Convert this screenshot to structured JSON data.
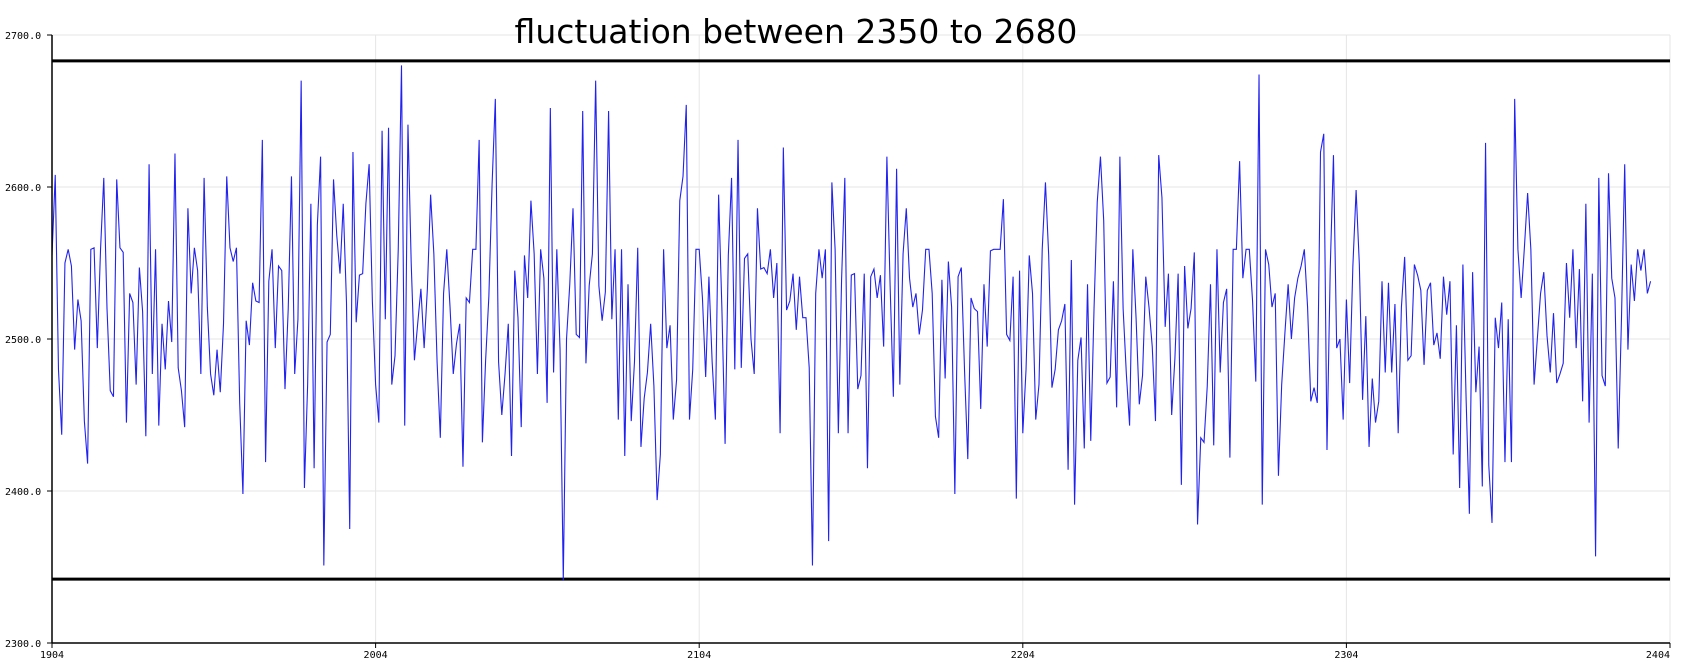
{
  "chart_data": {
    "type": "line",
    "title": "fluctuation between 2350 to 2680",
    "xlabel": "",
    "ylabel": "",
    "xlim": [
      1904,
      2404
    ],
    "ylim": [
      2300,
      2700
    ],
    "x_ticks": [
      1904,
      2004,
      2104,
      2204,
      2304,
      2404
    ],
    "y_ticks": [
      "2300.0",
      "2400.0",
      "2500.0",
      "2600.0",
      "2700.0"
    ],
    "grid": true,
    "legend": "none",
    "line_color": "#2222ee",
    "reference_lines": [
      {
        "y": 2683,
        "color": "#000000"
      },
      {
        "y": 2342,
        "color": "#000000"
      }
    ],
    "series": [
      {
        "x_start": 1904,
        "x_step": 1,
        "values": [
          2555,
          2608,
          2480,
          2437,
          2550,
          2559,
          2548,
          2493,
          2526,
          2512,
          2446,
          2418,
          2559,
          2560,
          2494,
          2559,
          2606,
          2520,
          2466,
          2462,
          2605,
          2560,
          2557,
          2445,
          2530,
          2524,
          2470,
          2547,
          2518,
          2436,
          2615,
          2477,
          2559,
          2443,
          2510,
          2480,
          2525,
          2498,
          2622,
          2481,
          2466,
          2442,
          2586,
          2530,
          2560,
          2545,
          2477,
          2606,
          2521,
          2477,
          2463,
          2493,
          2465,
          2510,
          2607,
          2560,
          2551,
          2560,
          2458,
          2398,
          2512,
          2496,
          2537,
          2525,
          2524,
          2631,
          2419,
          2538,
          2559,
          2494,
          2548,
          2545,
          2467,
          2520,
          2607,
          2477,
          2513,
          2670,
          2402,
          2470,
          2589,
          2415,
          2575,
          2620,
          2351,
          2498,
          2503,
          2605,
          2568,
          2543,
          2589,
          2524,
          2375,
          2623,
          2511,
          2542,
          2543,
          2589,
          2615,
          2525,
          2470,
          2445,
          2637,
          2513,
          2639,
          2470,
          2489,
          2559,
          2680,
          2443,
          2641,
          2550,
          2486,
          2510,
          2533,
          2494,
          2533,
          2595,
          2556,
          2485,
          2435,
          2530,
          2559,
          2521,
          2477,
          2497,
          2510,
          2416,
          2527,
          2524,
          2559,
          2559,
          2631,
          2432,
          2486,
          2528,
          2602,
          2658,
          2485,
          2450,
          2477,
          2510,
          2423,
          2545,
          2514,
          2442,
          2555,
          2527,
          2591,
          2556,
          2477,
          2559,
          2540,
          2458,
          2652,
          2478,
          2559,
          2493,
          2341,
          2500,
          2536,
          2586,
          2503,
          2501,
          2650,
          2484,
          2535,
          2556,
          2670,
          2535,
          2512,
          2531,
          2650,
          2513,
          2559,
          2447,
          2559,
          2423,
          2536,
          2446,
          2485,
          2560,
          2429,
          2461,
          2478,
          2510,
          2469,
          2394,
          2424,
          2559,
          2494,
          2509,
          2447,
          2473,
          2591,
          2607,
          2654,
          2447,
          2480,
          2559,
          2559,
          2527,
          2475,
          2541,
          2485,
          2447,
          2595,
          2521,
          2431,
          2555,
          2606,
          2480,
          2631,
          2481,
          2553,
          2556,
          2500,
          2477,
          2586,
          2546,
          2547,
          2543,
          2559,
          2527,
          2550,
          2438,
          2626,
          2519,
          2525,
          2543,
          2506,
          2541,
          2514,
          2514,
          2481,
          2351,
          2530,
          2559,
          2540,
          2559,
          2367,
          2603,
          2559,
          2438,
          2539,
          2606,
          2438,
          2542,
          2543,
          2467,
          2476,
          2543,
          2415,
          2541,
          2546,
          2527,
          2542,
          2495,
          2620,
          2535,
          2462,
          2612,
          2470,
          2556,
          2586,
          2540,
          2521,
          2530,
          2503,
          2519,
          2559,
          2559,
          2530,
          2449,
          2435,
          2539,
          2474,
          2551,
          2521,
          2398,
          2541,
          2547,
          2479,
          2421,
          2527,
          2520,
          2518,
          2454,
          2536,
          2495,
          2558,
          2559,
          2559,
          2559,
          2592,
          2503,
          2499,
          2541,
          2395,
          2545,
          2438,
          2480,
          2555,
          2530,
          2447,
          2470,
          2559,
          2603,
          2555,
          2468,
          2480,
          2506,
          2512,
          2523,
          2414,
          2552,
          2391,
          2486,
          2501,
          2428,
          2536,
          2433,
          2519,
          2590,
          2620,
          2578,
          2471,
          2475,
          2538,
          2455,
          2620,
          2520,
          2477,
          2443,
          2559,
          2514,
          2457,
          2476,
          2541,
          2521,
          2495,
          2446,
          2621,
          2593,
          2508,
          2543,
          2450,
          2487,
          2543,
          2404,
          2548,
          2507,
          2520,
          2557,
          2378,
          2435,
          2432,
          2469,
          2536,
          2430,
          2559,
          2478,
          2524,
          2533,
          2422,
          2559,
          2559,
          2617,
          2540,
          2559,
          2559,
          2525,
          2472,
          2674,
          2391,
          2559,
          2549,
          2521,
          2530,
          2410,
          2470,
          2504,
          2536,
          2500,
          2527,
          2540,
          2548,
          2559,
          2521,
          2459,
          2468,
          2458,
          2623,
          2635,
          2427,
          2546,
          2621,
          2494,
          2500,
          2447,
          2526,
          2471,
          2548,
          2598,
          2549,
          2460,
          2515,
          2429,
          2474,
          2445,
          2459,
          2538,
          2478,
          2537,
          2478,
          2523,
          2438,
          2521,
          2554,
          2486,
          2489,
          2549,
          2542,
          2532,
          2483,
          2532,
          2537,
          2496,
          2504,
          2487,
          2541,
          2516,
          2538,
          2424,
          2509,
          2402,
          2549,
          2460,
          2385,
          2544,
          2465,
          2495,
          2403,
          2629,
          2417,
          2379,
          2514,
          2494,
          2524,
          2419,
          2513,
          2419,
          2658,
          2559,
          2527,
          2560,
          2596,
          2559,
          2470,
          2500,
          2530,
          2544,
          2502,
          2478,
          2517,
          2471,
          2477,
          2484,
          2550,
          2514,
          2559,
          2494,
          2546,
          2459,
          2589,
          2445,
          2543,
          2357,
          2606,
          2476,
          2469,
          2609,
          2540,
          2527,
          2428,
          2513,
          2615,
          2493,
          2549,
          2525,
          2559,
          2545,
          2559,
          2530,
          2538
        ]
      }
    ]
  }
}
